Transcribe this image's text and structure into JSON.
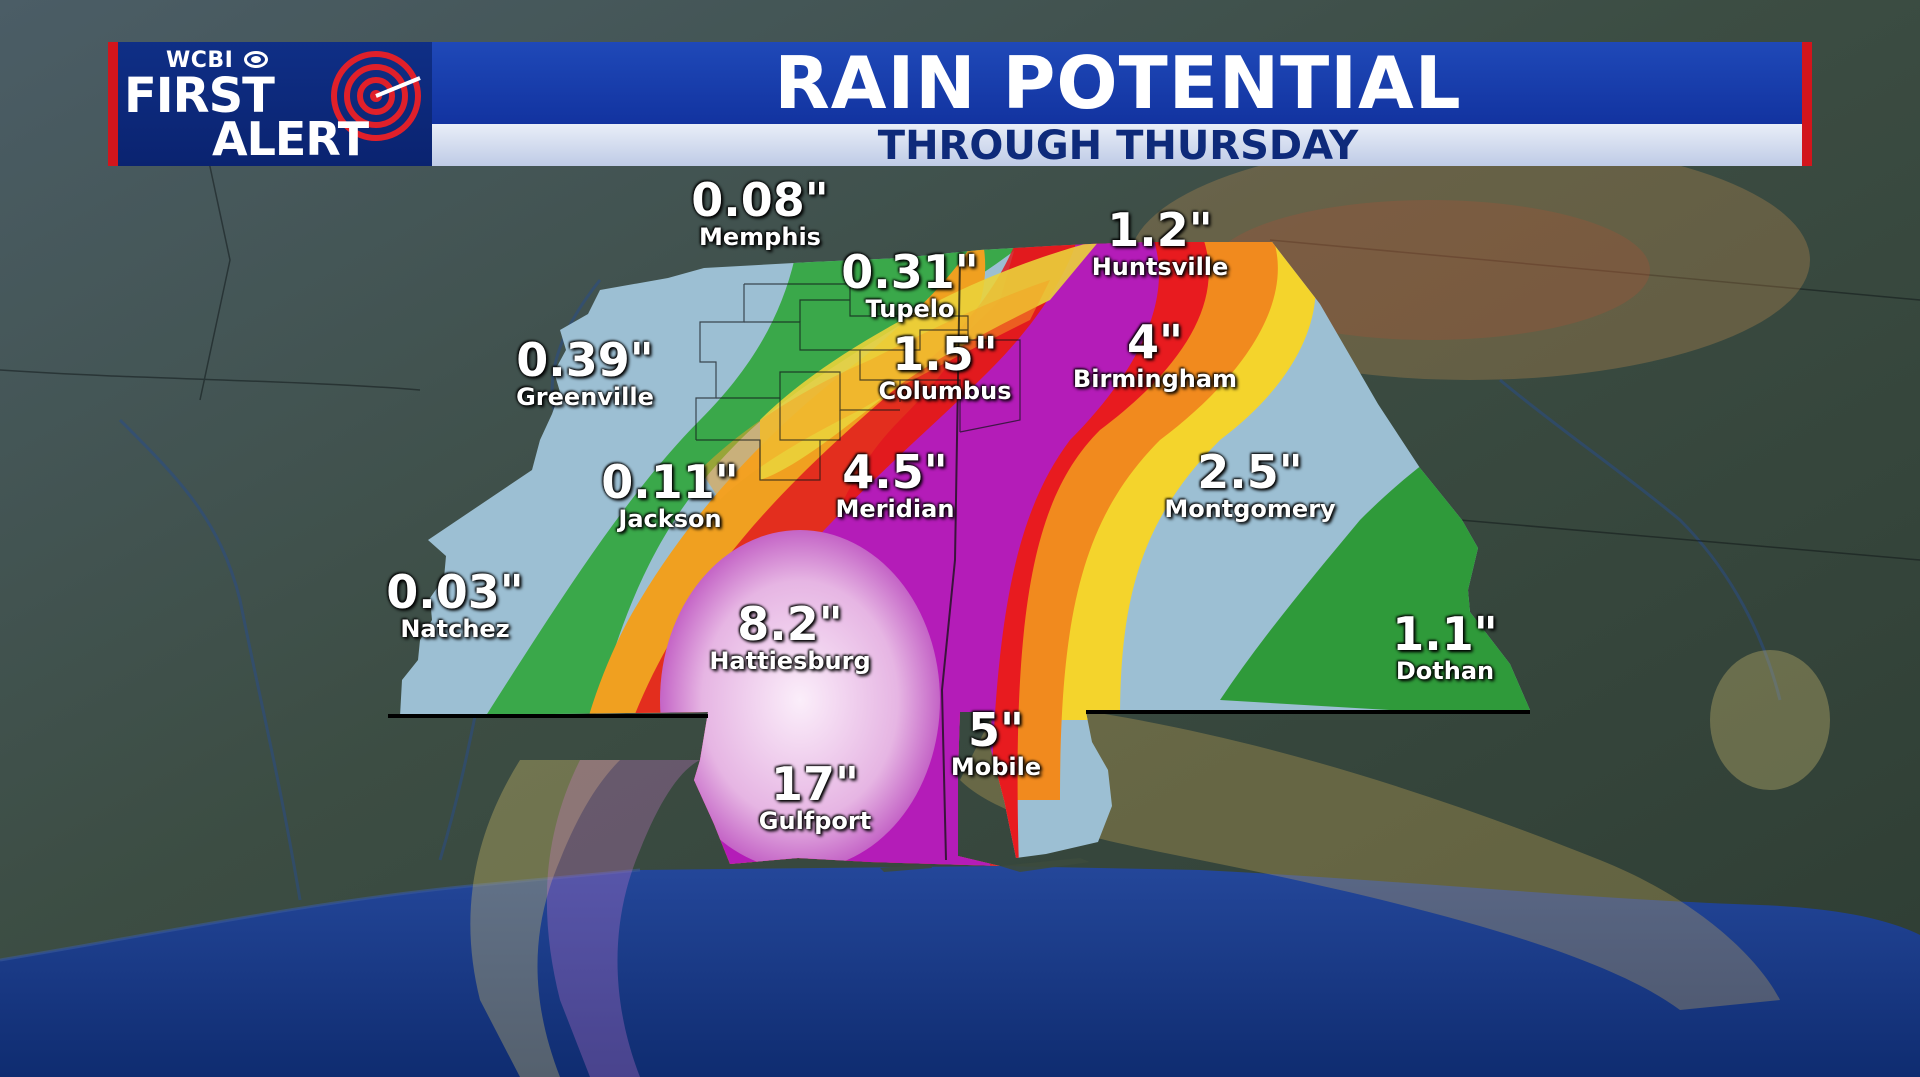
{
  "station": {
    "call_letters": "WCBI",
    "brand_line1": "FIRST",
    "brand_line2": "ALERT"
  },
  "header": {
    "title": "RAIN POTENTIAL",
    "subtitle": "THROUGH THURSDAY"
  },
  "colors": {
    "banner_blue": "#1f49b8",
    "accent_red": "#d2151c",
    "rain_light": "#9cc0d8",
    "rain_green": "#2fa83a",
    "rain_yellow": "#f2d02a",
    "rain_orange": "#f0831e",
    "rain_red": "#e4161b",
    "rain_magenta": "#b11ab5",
    "rain_pink": "#e8bde6",
    "gulf": "#1b3c8c"
  },
  "rainfall": [
    {
      "city": "Memphis",
      "amount": "0.08\""
    },
    {
      "city": "Tupelo",
      "amount": "0.31\""
    },
    {
      "city": "Huntsville",
      "amount": "1.2\""
    },
    {
      "city": "Greenville",
      "amount": "0.39\""
    },
    {
      "city": "Columbus",
      "amount": "1.5\""
    },
    {
      "city": "Birmingham",
      "amount": "4\""
    },
    {
      "city": "Jackson",
      "amount": "0.11\""
    },
    {
      "city": "Meridian",
      "amount": "4.5\""
    },
    {
      "city": "Montgomery",
      "amount": "2.5\""
    },
    {
      "city": "Natchez",
      "amount": "0.03\""
    },
    {
      "city": "Hattiesburg",
      "amount": "8.2\""
    },
    {
      "city": "Dothan",
      "amount": "1.1\""
    },
    {
      "city": "Mobile",
      "amount": "5\""
    },
    {
      "city": "Gulfport",
      "amount": "17\""
    }
  ]
}
